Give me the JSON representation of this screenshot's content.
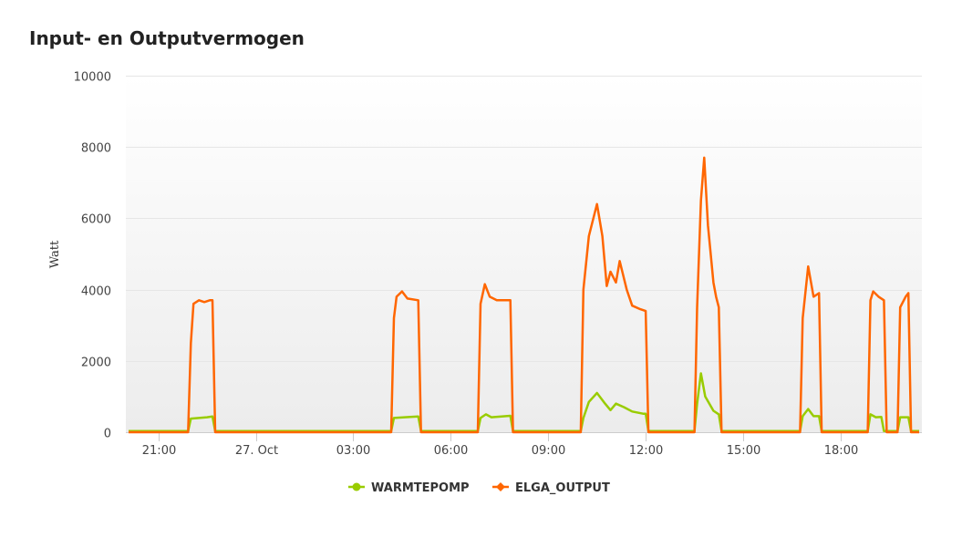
{
  "title": "Input- en Outputvermogen",
  "menu_icon": "hamburger-menu-icon",
  "colors": {
    "warmtepomp": "#99cc00",
    "elga_output": "#ff6600",
    "grid": "#e6e6e6",
    "plot_bg_top": "#ffffff",
    "plot_bg_bottom": "#ececec"
  },
  "chart_data": {
    "type": "line",
    "title": "Input- en Outputvermogen",
    "ylabel": "Watt",
    "xlabel": "",
    "ylim": [
      0,
      10000
    ],
    "yticks": [
      0,
      2000,
      4000,
      6000,
      8000,
      10000
    ],
    "xlim": [
      "2024-10-26T20:00",
      "2024-10-27T20:30"
    ],
    "xticks": [
      {
        "t": "2024-10-26T21:00",
        "label": "21:00"
      },
      {
        "t": "2024-10-27T00:00",
        "label": "27. Oct"
      },
      {
        "t": "2024-10-27T03:00",
        "label": "03:00"
      },
      {
        "t": "2024-10-27T06:00",
        "label": "06:00"
      },
      {
        "t": "2024-10-27T09:00",
        "label": "09:00"
      },
      {
        "t": "2024-10-27T12:00",
        "label": "12:00"
      },
      {
        "t": "2024-10-27T15:00",
        "label": "15:00"
      },
      {
        "t": "2024-10-27T18:00",
        "label": "18:00"
      }
    ],
    "grid": true,
    "legend_position": "bottom-center",
    "series": [
      {
        "name": "WARMTEPOMP",
        "color": "#99cc00",
        "points": [
          [
            "2024-10-26T20:05",
            30
          ],
          [
            "2024-10-26T21:55",
            30
          ],
          [
            "2024-10-26T22:00",
            380
          ],
          [
            "2024-10-26T22:30",
            420
          ],
          [
            "2024-10-26T22:40",
            440
          ],
          [
            "2024-10-26T22:45",
            30
          ],
          [
            "2024-10-27T04:10",
            30
          ],
          [
            "2024-10-27T04:15",
            400
          ],
          [
            "2024-10-27T04:35",
            420
          ],
          [
            "2024-10-27T05:00",
            440
          ],
          [
            "2024-10-27T05:05",
            30
          ],
          [
            "2024-10-27T06:50",
            30
          ],
          [
            "2024-10-27T06:55",
            400
          ],
          [
            "2024-10-27T07:05",
            500
          ],
          [
            "2024-10-27T07:15",
            420
          ],
          [
            "2024-10-27T07:50",
            460
          ],
          [
            "2024-10-27T07:55",
            30
          ],
          [
            "2024-10-27T10:00",
            30
          ],
          [
            "2024-10-27T10:05",
            400
          ],
          [
            "2024-10-27T10:15",
            850
          ],
          [
            "2024-10-27T10:30",
            1100
          ],
          [
            "2024-10-27T10:45",
            800
          ],
          [
            "2024-10-27T10:55",
            620
          ],
          [
            "2024-10-27T11:05",
            800
          ],
          [
            "2024-10-27T11:20",
            700
          ],
          [
            "2024-10-27T11:35",
            580
          ],
          [
            "2024-10-27T11:55",
            520
          ],
          [
            "2024-10-27T12:00",
            520
          ],
          [
            "2024-10-27T12:05",
            30
          ],
          [
            "2024-10-27T13:30",
            30
          ],
          [
            "2024-10-27T13:35",
            800
          ],
          [
            "2024-10-27T13:42",
            1650
          ],
          [
            "2024-10-27T13:50",
            1000
          ],
          [
            "2024-10-27T14:05",
            600
          ],
          [
            "2024-10-27T14:15",
            500
          ],
          [
            "2024-10-27T14:20",
            30
          ],
          [
            "2024-10-27T16:45",
            30
          ],
          [
            "2024-10-27T16:50",
            450
          ],
          [
            "2024-10-27T17:00",
            650
          ],
          [
            "2024-10-27T17:10",
            450
          ],
          [
            "2024-10-27T17:20",
            450
          ],
          [
            "2024-10-27T17:25",
            30
          ],
          [
            "2024-10-27T18:50",
            30
          ],
          [
            "2024-10-27T18:55",
            500
          ],
          [
            "2024-10-27T19:05",
            420
          ],
          [
            "2024-10-27T19:15",
            430
          ],
          [
            "2024-10-27T19:20",
            30
          ],
          [
            "2024-10-27T19:45",
            30
          ],
          [
            "2024-10-27T19:50",
            420
          ],
          [
            "2024-10-27T20:05",
            420
          ],
          [
            "2024-10-27T20:10",
            30
          ],
          [
            "2024-10-27T20:25",
            30
          ]
        ]
      },
      {
        "name": "ELGA_OUTPUT",
        "color": "#ff6600",
        "points": [
          [
            "2024-10-26T20:05",
            0
          ],
          [
            "2024-10-26T21:55",
            0
          ],
          [
            "2024-10-26T22:00",
            2500
          ],
          [
            "2024-10-26T22:05",
            3600
          ],
          [
            "2024-10-26T22:15",
            3700
          ],
          [
            "2024-10-26T22:25",
            3650
          ],
          [
            "2024-10-26T22:35",
            3700
          ],
          [
            "2024-10-26T22:40",
            3700
          ],
          [
            "2024-10-26T22:45",
            0
          ],
          [
            "2024-10-27T04:10",
            0
          ],
          [
            "2024-10-27T04:15",
            3200
          ],
          [
            "2024-10-27T04:20",
            3800
          ],
          [
            "2024-10-27T04:30",
            3950
          ],
          [
            "2024-10-27T04:40",
            3750
          ],
          [
            "2024-10-27T05:00",
            3700
          ],
          [
            "2024-10-27T05:05",
            0
          ],
          [
            "2024-10-27T06:50",
            0
          ],
          [
            "2024-10-27T06:55",
            3600
          ],
          [
            "2024-10-27T07:03",
            4150
          ],
          [
            "2024-10-27T07:12",
            3800
          ],
          [
            "2024-10-27T07:25",
            3700
          ],
          [
            "2024-10-27T07:50",
            3700
          ],
          [
            "2024-10-27T07:55",
            0
          ],
          [
            "2024-10-27T10:00",
            0
          ],
          [
            "2024-10-27T10:05",
            4000
          ],
          [
            "2024-10-27T10:15",
            5500
          ],
          [
            "2024-10-27T10:30",
            6400
          ],
          [
            "2024-10-27T10:40",
            5500
          ],
          [
            "2024-10-27T10:48",
            4100
          ],
          [
            "2024-10-27T10:55",
            4500
          ],
          [
            "2024-10-27T11:05",
            4200
          ],
          [
            "2024-10-27T11:12",
            4800
          ],
          [
            "2024-10-27T11:25",
            4000
          ],
          [
            "2024-10-27T11:35",
            3550
          ],
          [
            "2024-10-27T11:50",
            3450
          ],
          [
            "2024-10-27T12:00",
            3400
          ],
          [
            "2024-10-27T12:05",
            0
          ],
          [
            "2024-10-27T13:30",
            0
          ],
          [
            "2024-10-27T13:35",
            3500
          ],
          [
            "2024-10-27T13:42",
            6500
          ],
          [
            "2024-10-27T13:48",
            7700
          ],
          [
            "2024-10-27T13:55",
            5800
          ],
          [
            "2024-10-27T14:05",
            4200
          ],
          [
            "2024-10-27T14:10",
            3800
          ],
          [
            "2024-10-27T14:15",
            3500
          ],
          [
            "2024-10-27T14:20",
            0
          ],
          [
            "2024-10-27T16:45",
            0
          ],
          [
            "2024-10-27T16:50",
            3200
          ],
          [
            "2024-10-27T17:00",
            4650
          ],
          [
            "2024-10-27T17:10",
            3800
          ],
          [
            "2024-10-27T17:20",
            3900
          ],
          [
            "2024-10-27T17:25",
            0
          ],
          [
            "2024-10-27T18:50",
            0
          ],
          [
            "2024-10-27T18:55",
            3700
          ],
          [
            "2024-10-27T19:00",
            3950
          ],
          [
            "2024-10-27T19:10",
            3800
          ],
          [
            "2024-10-27T19:20",
            3700
          ],
          [
            "2024-10-27T19:25",
            0
          ],
          [
            "2024-10-27T19:45",
            0
          ],
          [
            "2024-10-27T19:50",
            3500
          ],
          [
            "2024-10-27T20:00",
            3800
          ],
          [
            "2024-10-27T20:05",
            3900
          ],
          [
            "2024-10-27T20:10",
            0
          ],
          [
            "2024-10-27T20:25",
            0
          ]
        ]
      }
    ]
  }
}
